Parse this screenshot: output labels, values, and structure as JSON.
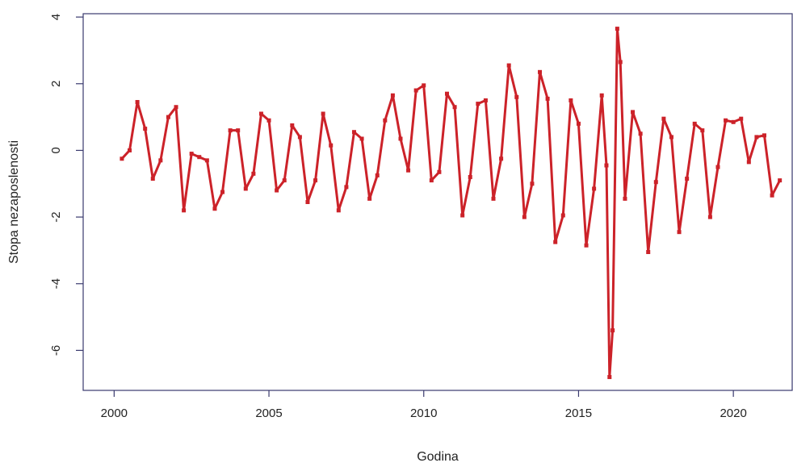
{
  "chart_data": {
    "type": "line",
    "title": "",
    "xlabel": "Godina",
    "ylabel": "Stopa nezaposlenosti",
    "xlim": [
      1999.0,
      2021.9
    ],
    "ylim": [
      -7.2,
      4.1
    ],
    "x_ticks": [
      2000,
      2005,
      2010,
      2015,
      2020
    ],
    "y_ticks": [
      -6,
      -4,
      -2,
      0,
      2,
      4
    ],
    "grid": false,
    "legend": "none",
    "colors": {
      "line": "#cc2229",
      "axis": "#3a3a6e",
      "text": "#222222"
    },
    "x": [
      2000.25,
      2000.5,
      2000.75,
      2001.0,
      2001.25,
      2001.5,
      2001.75,
      2002.0,
      2002.25,
      2002.5,
      2002.75,
      2003.0,
      2003.25,
      2003.5,
      2003.75,
      2004.0,
      2004.25,
      2004.5,
      2004.75,
      2005.0,
      2005.25,
      2005.5,
      2005.75,
      2006.0,
      2006.25,
      2006.5,
      2006.75,
      2007.0,
      2007.25,
      2007.5,
      2007.75,
      2008.0,
      2008.25,
      2008.5,
      2008.75,
      2009.0,
      2009.25,
      2009.5,
      2009.75,
      2010.0,
      2010.25,
      2010.5,
      2010.75,
      2011.0,
      2011.25,
      2011.5,
      2011.75,
      2012.0,
      2012.25,
      2012.5,
      2012.75,
      2013.0,
      2013.25,
      2013.5,
      2013.75,
      2014.0,
      2014.25,
      2014.5,
      2014.75,
      2015.0,
      2015.25,
      2015.5,
      2015.75,
      2015.9,
      2016.0,
      2016.1,
      2016.25,
      2016.35,
      2016.5,
      2016.75,
      2017.0,
      2017.25,
      2017.5,
      2017.75,
      2018.0,
      2018.25,
      2018.5,
      2018.75,
      2019.0,
      2019.25,
      2019.5,
      2019.75,
      2020.0,
      2020.25,
      2020.5,
      2020.75,
      2021.0,
      2021.25,
      2021.5
    ],
    "y": [
      -0.25,
      0.0,
      1.45,
      0.65,
      -0.85,
      -0.3,
      1.0,
      1.3,
      -1.8,
      -0.1,
      -0.2,
      -0.3,
      -1.75,
      -1.25,
      0.6,
      0.6,
      -1.15,
      -0.7,
      1.1,
      0.9,
      -1.2,
      -0.9,
      0.75,
      0.4,
      -1.55,
      -0.9,
      1.1,
      0.15,
      -1.8,
      -1.1,
      0.55,
      0.35,
      -1.45,
      -0.75,
      0.9,
      1.65,
      0.35,
      -0.6,
      1.8,
      1.95,
      -0.9,
      -0.65,
      1.7,
      1.3,
      -1.95,
      -0.8,
      1.4,
      1.5,
      -1.45,
      -0.25,
      2.55,
      1.6,
      -2.0,
      -1.0,
      2.35,
      1.55,
      -2.75,
      -1.95,
      1.5,
      0.8,
      -2.85,
      -1.15,
      1.65,
      -0.45,
      -6.8,
      -5.4,
      3.65,
      2.65,
      -1.45,
      1.15,
      0.5,
      -3.05,
      -0.95,
      0.95,
      0.4,
      -2.45,
      -0.85,
      0.8,
      0.6,
      -2.0,
      -0.5,
      0.9,
      0.85,
      0.95,
      -0.35,
      0.4,
      0.45,
      -1.35,
      -0.9
    ]
  }
}
